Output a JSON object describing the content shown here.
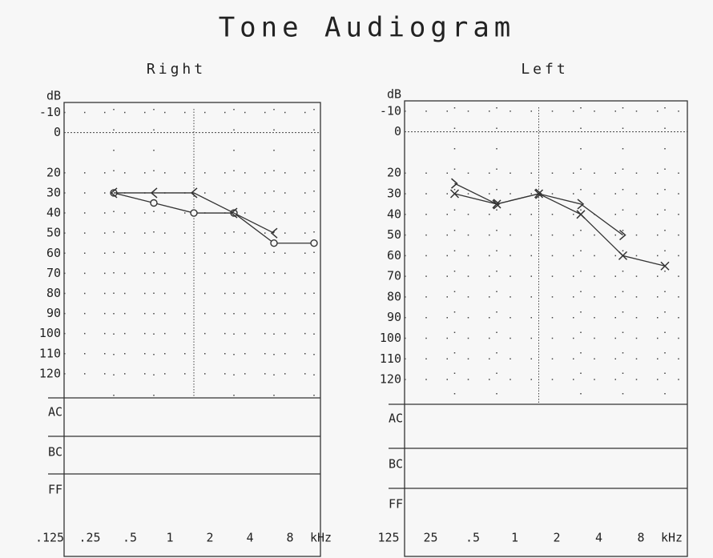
{
  "title": "Tone Audiogram",
  "chart_data": [
    {
      "type": "line",
      "title": "Right",
      "y_label": "dB",
      "x_unit": "kHz",
      "categories": [
        ".125",
        ".25",
        ".5",
        "1",
        "2",
        "4",
        "8"
      ],
      "ylim": [
        -15,
        132
      ],
      "yticks": [
        -10,
        0,
        20,
        30,
        40,
        50,
        60,
        70,
        80,
        90,
        100,
        110,
        120
      ],
      "rows": [
        "AC",
        "BC",
        "FF"
      ],
      "series": [
        {
          "marker": "o",
          "color": "#333",
          "values": [
            null,
            30,
            35,
            40,
            40,
            55,
            55
          ]
        },
        {
          "marker": "<",
          "color": "#333",
          "values": [
            null,
            30,
            30,
            30,
            40,
            50,
            null
          ]
        }
      ]
    },
    {
      "type": "line",
      "title": "Left",
      "y_label": "dB",
      "x_unit": "kHz",
      "categories": [
        "125",
        "25",
        ".5",
        "1",
        "2",
        "4",
        "8"
      ],
      "ylim": [
        -15,
        132
      ],
      "yticks": [
        -10,
        0,
        20,
        30,
        40,
        50,
        60,
        70,
        80,
        90,
        100,
        110,
        120
      ],
      "rows": [
        "AC",
        "BC",
        "FF"
      ],
      "series": [
        {
          "marker": "x",
          "color": "#333",
          "values": [
            null,
            30,
            35,
            30,
            40,
            60,
            65
          ]
        },
        {
          "marker": ">",
          "color": "#333",
          "values": [
            null,
            25,
            35,
            30,
            35,
            50,
            null
          ]
        }
      ]
    }
  ]
}
